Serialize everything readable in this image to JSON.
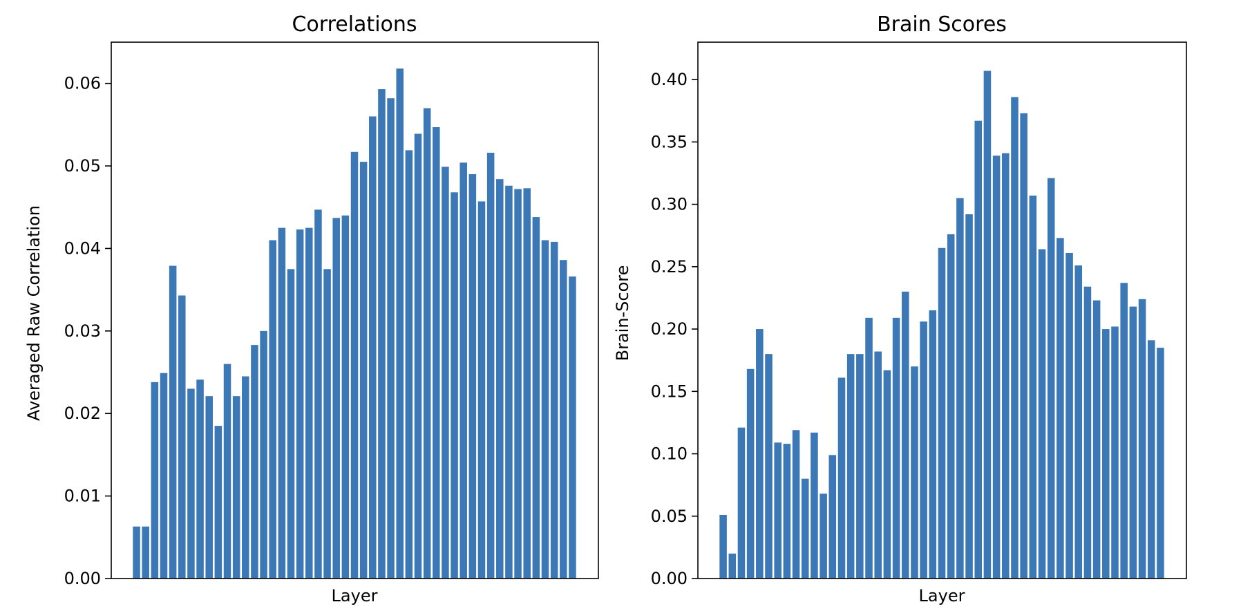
{
  "chart_data": [
    {
      "type": "bar",
      "title": "Correlations",
      "xlabel": "Layer",
      "ylabel": "Averaged Raw Correlation",
      "ylim": [
        0,
        0.065
      ],
      "yticks": [
        "0.00",
        "0.01",
        "0.02",
        "0.03",
        "0.04",
        "0.05",
        "0.06"
      ],
      "color": "#3b78b5",
      "grid": false,
      "values": [
        0.0063,
        0.0063,
        0.0238,
        0.0249,
        0.0379,
        0.0343,
        0.023,
        0.0241,
        0.0221,
        0.0185,
        0.026,
        0.0221,
        0.0245,
        0.0283,
        0.03,
        0.041,
        0.0425,
        0.0375,
        0.0423,
        0.0425,
        0.0447,
        0.0375,
        0.0437,
        0.044,
        0.0517,
        0.0505,
        0.056,
        0.0593,
        0.0582,
        0.0618,
        0.0519,
        0.0539,
        0.057,
        0.0547,
        0.0499,
        0.0468,
        0.0504,
        0.049,
        0.0457,
        0.0516,
        0.0484,
        0.0476,
        0.0472,
        0.0473,
        0.0438,
        0.041,
        0.0408,
        0.0386,
        0.0366
      ]
    },
    {
      "type": "bar",
      "title": "Brain Scores",
      "xlabel": "Layer",
      "ylabel": "Brain-Score",
      "ylim": [
        0,
        0.43
      ],
      "yticks": [
        "0.00",
        "0.05",
        "0.10",
        "0.15",
        "0.20",
        "0.25",
        "0.30",
        "0.35",
        "0.40"
      ],
      "color": "#3b78b5",
      "grid": false,
      "values": [
        0.051,
        0.02,
        0.121,
        0.168,
        0.2,
        0.18,
        0.109,
        0.108,
        0.119,
        0.08,
        0.117,
        0.068,
        0.099,
        0.161,
        0.18,
        0.18,
        0.209,
        0.182,
        0.167,
        0.209,
        0.23,
        0.17,
        0.206,
        0.215,
        0.265,
        0.276,
        0.305,
        0.292,
        0.367,
        0.407,
        0.339,
        0.341,
        0.386,
        0.373,
        0.307,
        0.264,
        0.321,
        0.273,
        0.261,
        0.251,
        0.234,
        0.223,
        0.2,
        0.202,
        0.237,
        0.218,
        0.224,
        0.191,
        0.185
      ]
    }
  ]
}
